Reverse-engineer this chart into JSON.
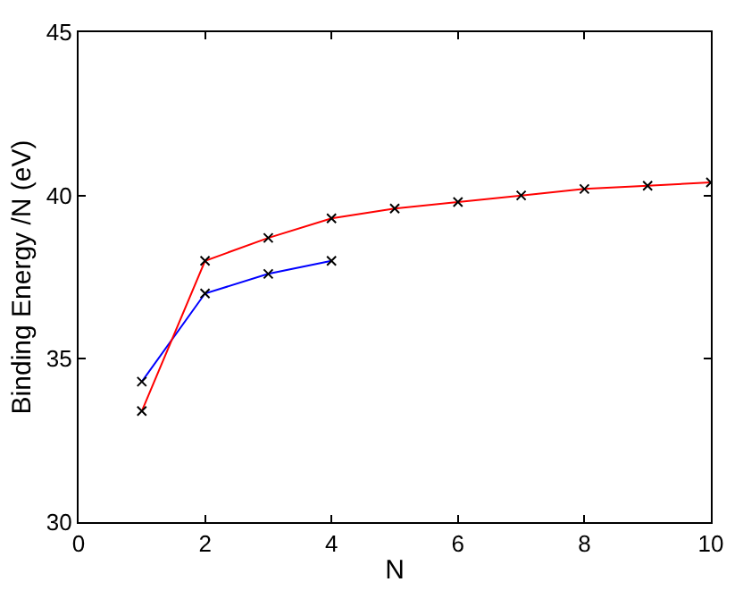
{
  "chart_data": {
    "type": "line",
    "xlabel": "N",
    "ylabel": "Binding Energy /N (eV)",
    "xlim": [
      0,
      10
    ],
    "ylim": [
      30,
      45
    ],
    "xticks": [
      0,
      2,
      4,
      6,
      8,
      10
    ],
    "yticks": [
      30,
      35,
      40,
      45
    ],
    "marker": "cross",
    "line_style": "solid",
    "series": [
      {
        "color": "#0000ff",
        "x": [
          1,
          2,
          3,
          4
        ],
        "values": [
          34.3,
          37.0,
          37.6,
          38.0
        ]
      },
      {
        "color": "#ff0000",
        "x": [
          1,
          2,
          3,
          4,
          5,
          6,
          7,
          8,
          9,
          10
        ],
        "values": [
          33.4,
          38.0,
          38.7,
          39.3,
          39.6,
          39.8,
          40.0,
          40.2,
          40.3,
          40.4
        ]
      }
    ]
  }
}
